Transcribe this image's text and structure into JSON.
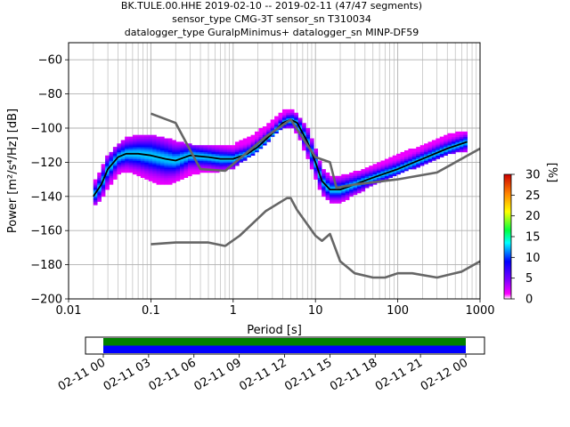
{
  "title_lines": [
    "BK.TULE.00.HHE   2019-02-10 -- 2019-02-11  (47/47 segments)",
    "sensor_type CMG-3T sensor_sn T310034",
    "datalogger_type GuralpMinimus+ datalogger_sn MINP-DF59"
  ],
  "chart_data": {
    "type": "heatmap",
    "xlabel": "Period [s]",
    "ylabel": "Power [m²/s⁴/Hz] [dB]",
    "xscale": "log",
    "xlim": [
      0.01,
      1000
    ],
    "ylim": [
      -200,
      -50
    ],
    "x_ticks": [
      0.01,
      0.1,
      1,
      10,
      100,
      1000
    ],
    "x_tick_labels": [
      "0.01",
      "0.1",
      "1",
      "10",
      "100",
      "1000"
    ],
    "y_ticks": [
      -200,
      -180,
      -160,
      -140,
      -120,
      -100,
      -80,
      -60
    ],
    "y_tick_labels": [
      "−200",
      "−180",
      "−160",
      "−140",
      "−120",
      "−100",
      "−80",
      "−60"
    ],
    "grid": true,
    "colorbar": {
      "label": "[%]",
      "min": 0,
      "max": 30,
      "ticks": [
        0,
        5,
        10,
        15,
        20,
        25,
        30
      ],
      "tick_labels": [
        "0",
        "5",
        "10",
        "15",
        "20",
        "25",
        "30"
      ],
      "cmap": "pqlx"
    },
    "density_band": [
      {
        "x": 0.02,
        "y": [
          -146,
          -132
        ]
      },
      {
        "x": 0.025,
        "y": [
          -142,
          -124
        ]
      },
      {
        "x": 0.03,
        "y": [
          -136,
          -116
        ]
      },
      {
        "x": 0.04,
        "y": [
          -128,
          -110
        ]
      },
      {
        "x": 0.05,
        "y": [
          -126,
          -106
        ]
      },
      {
        "x": 0.07,
        "y": [
          -128,
          -104
        ]
      },
      {
        "x": 0.1,
        "y": [
          -132,
          -104
        ]
      },
      {
        "x": 0.15,
        "y": [
          -134,
          -106
        ]
      },
      {
        "x": 0.2,
        "y": [
          -132,
          -108
        ]
      },
      {
        "x": 0.3,
        "y": [
          -128,
          -110
        ]
      },
      {
        "x": 0.5,
        "y": [
          -126,
          -110
        ]
      },
      {
        "x": 0.7,
        "y": [
          -126,
          -110
        ]
      },
      {
        "x": 1,
        "y": [
          -124,
          -110
        ]
      },
      {
        "x": 1.5,
        "y": [
          -118,
          -106
        ]
      },
      {
        "x": 2,
        "y": [
          -114,
          -102
        ]
      },
      {
        "x": 3,
        "y": [
          -106,
          -96
        ]
      },
      {
        "x": 4,
        "y": [
          -100,
          -90
        ]
      },
      {
        "x": 5,
        "y": [
          -100,
          -89
        ]
      },
      {
        "x": 6,
        "y": [
          -104,
          -92
        ]
      },
      {
        "x": 8,
        "y": [
          -118,
          -100
        ]
      },
      {
        "x": 10,
        "y": [
          -130,
          -112
        ]
      },
      {
        "x": 12,
        "y": [
          -140,
          -124
        ]
      },
      {
        "x": 15,
        "y": [
          -144,
          -128
        ]
      },
      {
        "x": 20,
        "y": [
          -144,
          -128
        ]
      },
      {
        "x": 30,
        "y": [
          -140,
          -126
        ]
      },
      {
        "x": 50,
        "y": [
          -134,
          -122
        ]
      },
      {
        "x": 100,
        "y": [
          -128,
          -116
        ]
      },
      {
        "x": 200,
        "y": [
          -122,
          -110
        ]
      },
      {
        "x": 400,
        "y": [
          -116,
          -104
        ]
      },
      {
        "x": 700,
        "y": [
          -114,
          -102
        ]
      }
    ],
    "series": [
      {
        "points": [
          {
            "x": 0.02,
            "y": -140
          },
          {
            "x": 0.025,
            "y": -133
          },
          {
            "x": 0.03,
            "y": -124
          },
          {
            "x": 0.04,
            "y": -117
          },
          {
            "x": 0.05,
            "y": -115
          },
          {
            "x": 0.07,
            "y": -115
          },
          {
            "x": 0.1,
            "y": -116
          },
          {
            "x": 0.15,
            "y": -118
          },
          {
            "x": 0.2,
            "y": -119
          },
          {
            "x": 0.3,
            "y": -116
          },
          {
            "x": 0.5,
            "y": -117
          },
          {
            "x": 0.7,
            "y": -118
          },
          {
            "x": 1,
            "y": -118
          },
          {
            "x": 1.5,
            "y": -115
          },
          {
            "x": 2,
            "y": -111
          },
          {
            "x": 3,
            "y": -103
          },
          {
            "x": 4,
            "y": -97
          },
          {
            "x": 5,
            "y": -95
          },
          {
            "x": 6,
            "y": -97
          },
          {
            "x": 8,
            "y": -108
          },
          {
            "x": 10,
            "y": -120
          },
          {
            "x": 12,
            "y": -131
          },
          {
            "x": 15,
            "y": -136
          },
          {
            "x": 20,
            "y": -136
          },
          {
            "x": 30,
            "y": -133
          },
          {
            "x": 50,
            "y": -129
          },
          {
            "x": 100,
            "y": -124
          },
          {
            "x": 200,
            "y": -118
          },
          {
            "x": 400,
            "y": -112
          },
          {
            "x": 700,
            "y": -108
          }
        ]
      },
      {
        "points": [
          {
            "x": 0.1,
            "y": -91.5
          },
          {
            "x": 0.2,
            "y": -97
          },
          {
            "x": 0.4,
            "y": -124
          },
          {
            "x": 0.8,
            "y": -125
          },
          {
            "x": 2.5,
            "y": -105
          },
          {
            "x": 5,
            "y": -95
          },
          {
            "x": 8,
            "y": -110
          },
          {
            "x": 10,
            "y": -117
          },
          {
            "x": 15,
            "y": -120
          },
          {
            "x": 18,
            "y": -135
          },
          {
            "x": 30,
            "y": -133
          },
          {
            "x": 100,
            "y": -130
          },
          {
            "x": 300,
            "y": -126
          },
          {
            "x": 1000,
            "y": -112
          }
        ]
      },
      {
        "points": [
          {
            "x": 0.1,
            "y": -168
          },
          {
            "x": 0.2,
            "y": -167
          },
          {
            "x": 0.5,
            "y": -167
          },
          {
            "x": 0.8,
            "y": -169
          },
          {
            "x": 1.2,
            "y": -163
          },
          {
            "x": 2.5,
            "y": -148.5
          },
          {
            "x": 4.5,
            "y": -141
          },
          {
            "x": 5,
            "y": -141
          },
          {
            "x": 6,
            "y": -148
          },
          {
            "x": 10,
            "y": -163
          },
          {
            "x": 12,
            "y": -166
          },
          {
            "x": 15,
            "y": -162
          },
          {
            "x": 20,
            "y": -178
          },
          {
            "x": 30,
            "y": -185
          },
          {
            "x": 50,
            "y": -187.5
          },
          {
            "x": 70,
            "y": -187.5
          },
          {
            "x": 100,
            "y": -185
          },
          {
            "x": 150,
            "y": -185
          },
          {
            "x": 300,
            "y": -187.5
          },
          {
            "x": 600,
            "y": -184
          },
          {
            "x": 1000,
            "y": -178
          }
        ]
      }
    ],
    "coverage": {
      "tick_labels": [
        "02-11 00",
        "02-11 03",
        "02-11 06",
        "02-11 09",
        "02-11 12",
        "02-11 15",
        "02-11 18",
        "02-11 21",
        "02-12 00"
      ],
      "bars": [
        {
          "color": "#0000ff",
          "start_hour": 0,
          "end_hour": 24
        },
        {
          "color": "#008000",
          "start_hour": 0,
          "end_hour": 24
        }
      ]
    }
  }
}
